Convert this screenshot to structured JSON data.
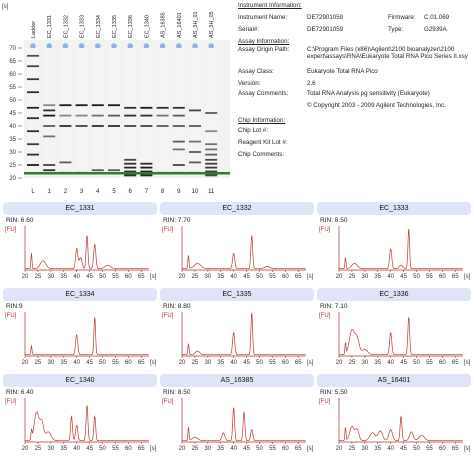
{
  "gel": {
    "unit_label": "[s]",
    "y_ticks": [
      "70",
      "65",
      "60",
      "55",
      "50",
      "45",
      "40",
      "35",
      "30",
      "25",
      "20"
    ],
    "lanes": [
      {
        "header": "Ladder",
        "label": "L"
      },
      {
        "header": "EC_1331",
        "label": "1"
      },
      {
        "header": "EC_1332",
        "label": "2"
      },
      {
        "header": "EC_1333",
        "label": "3"
      },
      {
        "header": "EC_1334",
        "label": "4"
      },
      {
        "header": "EC_1335",
        "label": "5"
      },
      {
        "header": "EC_1336",
        "label": "6"
      },
      {
        "header": "EC_1340",
        "label": "7"
      },
      {
        "header": "AS_16385",
        "label": "8"
      },
      {
        "header": "AS_16401",
        "label": "9"
      },
      {
        "header": "AS_3H_01",
        "label": "10"
      },
      {
        "header": "AS_3H_05",
        "label": "11"
      }
    ],
    "colors": {
      "background": "#f2f2f2",
      "band": "#1a1a1a",
      "marker": "#2e7d32",
      "dot": "#90b0e8"
    }
  },
  "info": {
    "instrument_heading": "Instrument Information:",
    "instrument_name_label": "Instrument Name:",
    "instrument_name": "DE72901059",
    "serial_label": "Serial#:",
    "serial": "DE72901059",
    "firmware_label": "Firmware:",
    "firmware": "C.01.069",
    "type_label": "Type:",
    "type": "G2939A",
    "assay_heading": "Assay Information:",
    "assay_origin_label": "Assay Origin Path:",
    "assay_origin_line1": "C:\\Program Files (x86)\\Agilent\\2100 bioanalyzer\\2100",
    "assay_origin_line2": "expert\\assays\\RNA\\Eukaryote Total RNA Pico Series II.xsy",
    "assay_class_label": "Assay Class:",
    "assay_class": "Eukaryote Total RNA Pico",
    "version_label": "Version:",
    "version": "2.6",
    "assay_comments_label": "Assay Comments:",
    "assay_comments": "Total RNA Analysis pg sensitivity (Eukaryote)",
    "copyright": "© Copyright 2003 - 2009 Agilent Technologies, Inc.",
    "chip_heading": "Chip Information:",
    "chip_lot_label": "Chip Lot #:",
    "reagent_kit_label": "Reagent Kit Lot #:",
    "chip_comments_label": "Chip Comments:"
  },
  "axis": {
    "y_unit": "[FU]",
    "x_ticks": [
      "20",
      "25",
      "30",
      "35",
      "40",
      "45",
      "50",
      "55",
      "60",
      "65"
    ],
    "x_unit": "[s]"
  },
  "panels": [
    {
      "title": "EC_1331",
      "rin": "RIN: 6.60"
    },
    {
      "title": "EC_1332",
      "rin": "RIN: 7.70"
    },
    {
      "title": "EC_1333",
      "rin": "RIN: 8.50"
    },
    {
      "title": "EC_1334",
      "rin": "RIN:9"
    },
    {
      "title": "EC_1335",
      "rin": "RIN: 8.80"
    },
    {
      "title": "EC_1336",
      "rin": "RIN: 7.10"
    },
    {
      "title": "EC_1340",
      "rin": "RIN: 6.40"
    },
    {
      "title": "AS_16385",
      "rin": "RIN: 8.50"
    },
    {
      "title": "AS_16401",
      "rin": "RIN: 5.50"
    }
  ],
  "colors": {
    "trace": "#c0392b",
    "axis": "#b03030",
    "title_bg": "#dfe4f7"
  }
}
